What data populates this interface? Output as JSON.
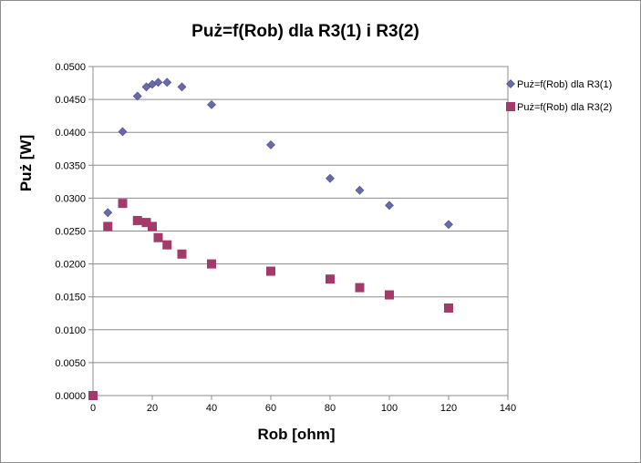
{
  "chart_data": {
    "type": "scatter",
    "title": "Puż=f(Rob) dla R3(1) i R3(2)",
    "xlabel": "Rob [ohm]",
    "ylabel": "Puż [W]",
    "xlim": [
      0,
      140
    ],
    "ylim": [
      0,
      0.05
    ],
    "x_ticks": [
      "0",
      "20",
      "40",
      "60",
      "80",
      "100",
      "120",
      "140"
    ],
    "y_ticks": [
      "0.0000",
      "0.0050",
      "0.0100",
      "0.0150",
      "0.0200",
      "0.0250",
      "0.0300",
      "0.0350",
      "0.0400",
      "0.0450",
      "0.0500"
    ],
    "grid": "horizontal",
    "legend_position": "right",
    "series": [
      {
        "name": "Puż=f(Rob) dla R3(1)",
        "marker": "diamond",
        "color": "#6a6aa8",
        "x": [
          0,
          5,
          10,
          15,
          18,
          20,
          22,
          25,
          30,
          40,
          60,
          80,
          90,
          100,
          120
        ],
        "y": [
          0.0,
          0.0278,
          0.0401,
          0.0455,
          0.0469,
          0.0473,
          0.0476,
          0.0476,
          0.0469,
          0.0442,
          0.0381,
          0.033,
          0.0312,
          0.0289,
          0.026
        ]
      },
      {
        "name": "Puż=f(Rob) dla R3(2)",
        "marker": "square",
        "color": "#a33b6a",
        "x": [
          0,
          5,
          10,
          15,
          18,
          20,
          22,
          25,
          30,
          40,
          60,
          80,
          90,
          100,
          120
        ],
        "y": [
          0.0,
          0.0257,
          0.0292,
          0.0266,
          0.0263,
          0.0257,
          0.024,
          0.0229,
          0.0215,
          0.02,
          0.0189,
          0.0177,
          0.0164,
          0.0153,
          0.0133
        ]
      }
    ]
  }
}
